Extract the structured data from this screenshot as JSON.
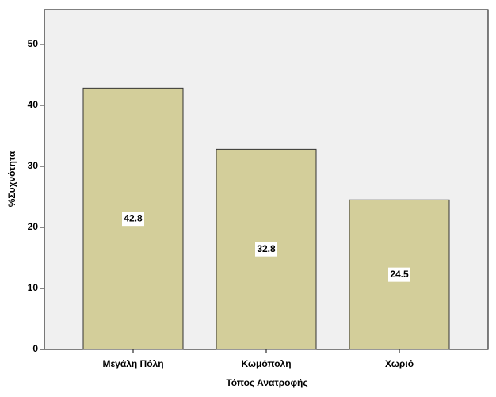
{
  "chart_data": {
    "type": "bar",
    "x_label": "Τόπος Ανατροφής",
    "y_label": "%Συχνότητα",
    "categories": [
      "Μεγάλη Πόλη",
      "Κωμόπολη",
      "Χωριό"
    ],
    "values": [
      42.8,
      32.8,
      24.5
    ],
    "color": "#d3ce9a",
    "ylim": [
      0,
      55.7
    ],
    "yticks": [
      0,
      10,
      20,
      30,
      40,
      50
    ],
    "data_labels": true
  }
}
